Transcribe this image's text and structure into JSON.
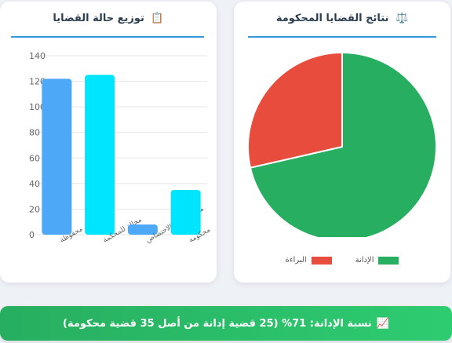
{
  "pie_card": {
    "title": "نتائج القضايا المحكومة",
    "icon": "⚖️",
    "legend": [
      {
        "label": "الإدانة",
        "color": "#27ae60"
      },
      {
        "label": "البراءة",
        "color": "#e74c3c"
      }
    ]
  },
  "bar_card": {
    "title": "توزيع حالة القضايا",
    "icon": "📋"
  },
  "banner": {
    "icon": "📈",
    "text": "نسبة الإدانة: 71% (25 قضية إدانة من أصل 35 قضية محكومة)"
  },
  "chart_data": [
    {
      "type": "pie",
      "categories": [
        "الإدانة",
        "البراءة"
      ],
      "values": [
        25,
        10
      ],
      "colors": [
        "#27ae60",
        "#e74c3c"
      ],
      "legend": "bottom"
    },
    {
      "type": "bar",
      "categories": [
        "محفوظة",
        "محالة للمحكمة",
        "محولة لعدم الاختصاص",
        "محكومة"
      ],
      "values": [
        122,
        125,
        8,
        35
      ],
      "colors": [
        "#4da8f7",
        "#00e5ff",
        "#4da8f7",
        "#00e5ff"
      ],
      "ylim": [
        0,
        140
      ],
      "yticks": [
        0,
        20,
        40,
        60,
        80,
        100,
        120,
        140
      ],
      "grid": true
    }
  ]
}
